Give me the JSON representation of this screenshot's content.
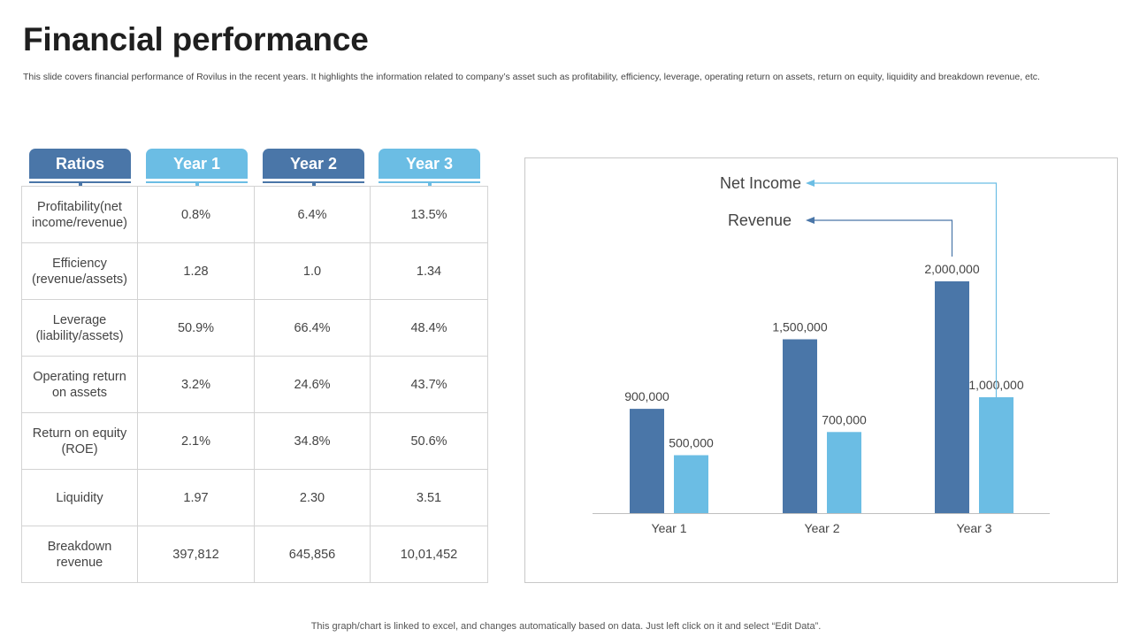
{
  "title": "Financial performance",
  "subtitle": "This slide covers financial performance of Rovilus in the recent years. It highlights the information related to company’s asset such as profitability, efficiency, leverage, operating return on assets, return on equity, liquidity and breakdown revenue, etc.",
  "table": {
    "headers": [
      "Ratios",
      "Year 1",
      "Year 2",
      "Year 3"
    ],
    "rows": [
      {
        "label": "Profitability(net income/revenue)",
        "values": [
          "0.8%",
          "6.4%",
          "13.5%"
        ]
      },
      {
        "label": "Efficiency (revenue/assets)",
        "values": [
          "1.28",
          "1.0",
          "1.34"
        ]
      },
      {
        "label": "Leverage (liability/assets)",
        "values": [
          "50.9%",
          "66.4%",
          "48.4%"
        ]
      },
      {
        "label": "Operating return on assets",
        "values": [
          "3.2%",
          "24.6%",
          "43.7%"
        ]
      },
      {
        "label": "Return on equity (ROE)",
        "values": [
          "2.1%",
          "34.8%",
          "50.6%"
        ]
      },
      {
        "label": "Liquidity",
        "values": [
          "1.97",
          "2.30",
          "3.51"
        ]
      },
      {
        "label": "Breakdown revenue",
        "values": [
          "397,812",
          "645,856",
          "10,01,452"
        ]
      }
    ]
  },
  "chart_data": {
    "type": "bar",
    "categories": [
      "Year 1",
      "Year 2",
      "Year 3"
    ],
    "series": [
      {
        "name": "Revenue",
        "values": [
          900000,
          1500000,
          2000000
        ],
        "labels": [
          "900,000",
          "1,500,000",
          "2,000,000"
        ],
        "color": "#4a76a8"
      },
      {
        "name": "Net Income",
        "values": [
          500000,
          700000,
          1000000
        ],
        "labels": [
          "500,000",
          "700,000",
          "1,000,000"
        ],
        "color": "#6bbde4"
      }
    ],
    "ylim": [
      0,
      2000000
    ],
    "grid": false,
    "legend": "top callouts with arrows"
  },
  "footer": "This graph/chart is linked to excel, and changes automatically based on data. Just left click on it and select “Edit Data”."
}
